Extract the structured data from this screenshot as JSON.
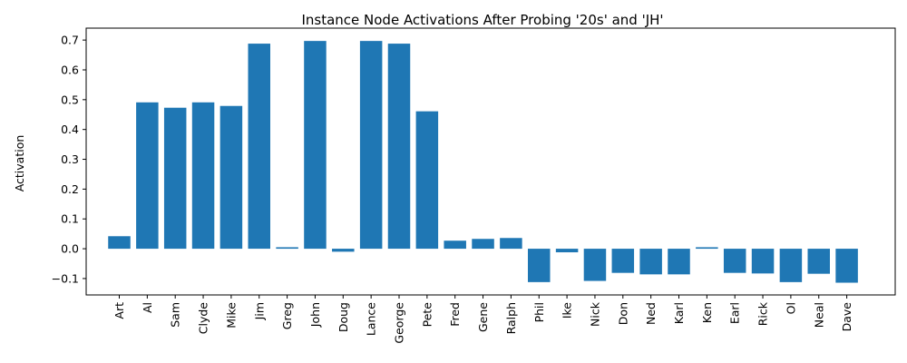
{
  "chart_data": {
    "type": "bar",
    "title": "Instance Node Activations After Probing '20s' and 'JH'",
    "xlabel": "",
    "ylabel": "Activation",
    "ylim": [
      -0.155,
      0.74
    ],
    "yticks": [
      -0.1,
      0.0,
      0.1,
      0.2,
      0.3,
      0.4,
      0.5,
      0.6,
      0.7
    ],
    "ytick_labels": [
      "−0.1",
      "0.0",
      "0.1",
      "0.2",
      "0.3",
      "0.4",
      "0.5",
      "0.6",
      "0.7"
    ],
    "grid": false,
    "bar_color": "#1f77b4",
    "categories": [
      "Art",
      "Al",
      "Sam",
      "Clyde",
      "Mike",
      "Jim",
      "Greg",
      "John",
      "Doug",
      "Lance",
      "George",
      "Pete",
      "Fred",
      "Gene",
      "Ralph",
      "Phil",
      "Ike",
      "Nick",
      "Don",
      "Ned",
      "Karl",
      "Ken",
      "Earl",
      "Rick",
      "Ol",
      "Neal",
      "Dave"
    ],
    "values": [
      0.042,
      0.491,
      0.473,
      0.491,
      0.479,
      0.688,
      0.005,
      0.697,
      -0.01,
      0.697,
      0.688,
      0.461,
      0.027,
      0.033,
      0.036,
      -0.112,
      -0.012,
      -0.108,
      -0.081,
      -0.086,
      -0.086,
      0.005,
      -0.081,
      -0.083,
      -0.112,
      -0.084,
      -0.114
    ]
  }
}
